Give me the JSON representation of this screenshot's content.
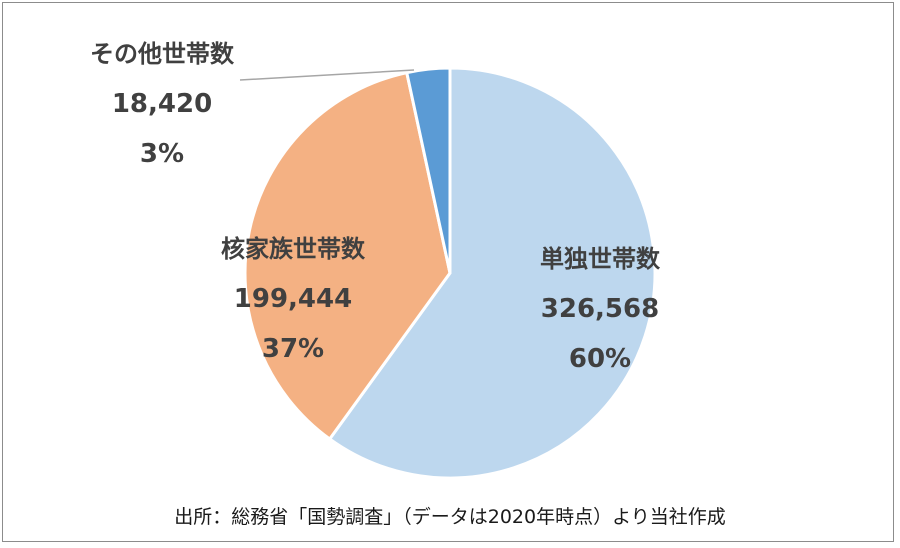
{
  "chart_data": {
    "type": "pie",
    "title": "",
    "slices": [
      {
        "label": "単独世帯数",
        "value": 326568,
        "value_text": "326,568",
        "percent_text": "60%",
        "color": "#bdd7ee"
      },
      {
        "label": "核家族世帯数",
        "value": 199444,
        "value_text": "199,444",
        "percent_text": "37%",
        "color": "#f4b183"
      },
      {
        "label": "その他世帯数",
        "value": 18420,
        "value_text": "18,420",
        "percent_text": "3%",
        "color": "#5b9bd5"
      }
    ],
    "start_angle_deg": 0,
    "direction": "clockwise",
    "legend": "none"
  },
  "source_note": "出所：総務省「国勢調査」（データは2020年時点）より当社作成"
}
